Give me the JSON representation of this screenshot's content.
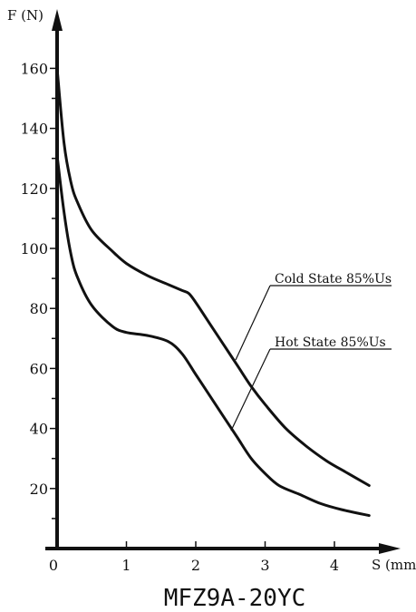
{
  "chart_data": {
    "type": "line",
    "title": "MFZ9A-20YC",
    "xlabel": "S (mm)",
    "ylabel": "F (N)",
    "xlim": [
      0,
      4.5
    ],
    "ylim": [
      0,
      170
    ],
    "x_ticks": [
      "0",
      "1",
      "2",
      "3",
      "4"
    ],
    "y_ticks": [
      "20",
      "40",
      "60",
      "80",
      "100",
      "120",
      "140",
      "160"
    ],
    "grid": false,
    "legend": "none",
    "annotations": [
      {
        "text": "Cold State 85%Us",
        "series": 0
      },
      {
        "text": "Hot State 85%Us",
        "series": 1
      }
    ],
    "series": [
      {
        "name": "Cold State 85%Us",
        "x": [
          0,
          0.1,
          0.2,
          0.3,
          0.5,
          0.8,
          1.0,
          1.3,
          1.6,
          1.8,
          1.9,
          2.0,
          2.2,
          2.4,
          2.6,
          2.8,
          3.0,
          3.3,
          3.6,
          3.9,
          4.2,
          4.5
        ],
        "y": [
          160,
          135,
          122,
          115,
          106,
          99,
          95,
          91,
          88,
          86,
          85,
          82,
          75,
          68,
          61,
          54,
          48,
          40,
          34,
          29,
          25,
          21
        ]
      },
      {
        "name": "Hot State 85%Us",
        "x": [
          0,
          0.1,
          0.2,
          0.3,
          0.5,
          0.8,
          1.0,
          1.3,
          1.6,
          1.8,
          2.0,
          2.2,
          2.4,
          2.6,
          2.8,
          3.0,
          3.2,
          3.5,
          3.8,
          4.1,
          4.5
        ],
        "y": [
          131,
          112,
          98,
          90,
          81,
          74,
          72,
          71,
          69,
          65,
          58,
          51,
          44,
          37,
          30,
          25,
          21,
          18,
          15,
          13,
          11
        ]
      }
    ]
  }
}
